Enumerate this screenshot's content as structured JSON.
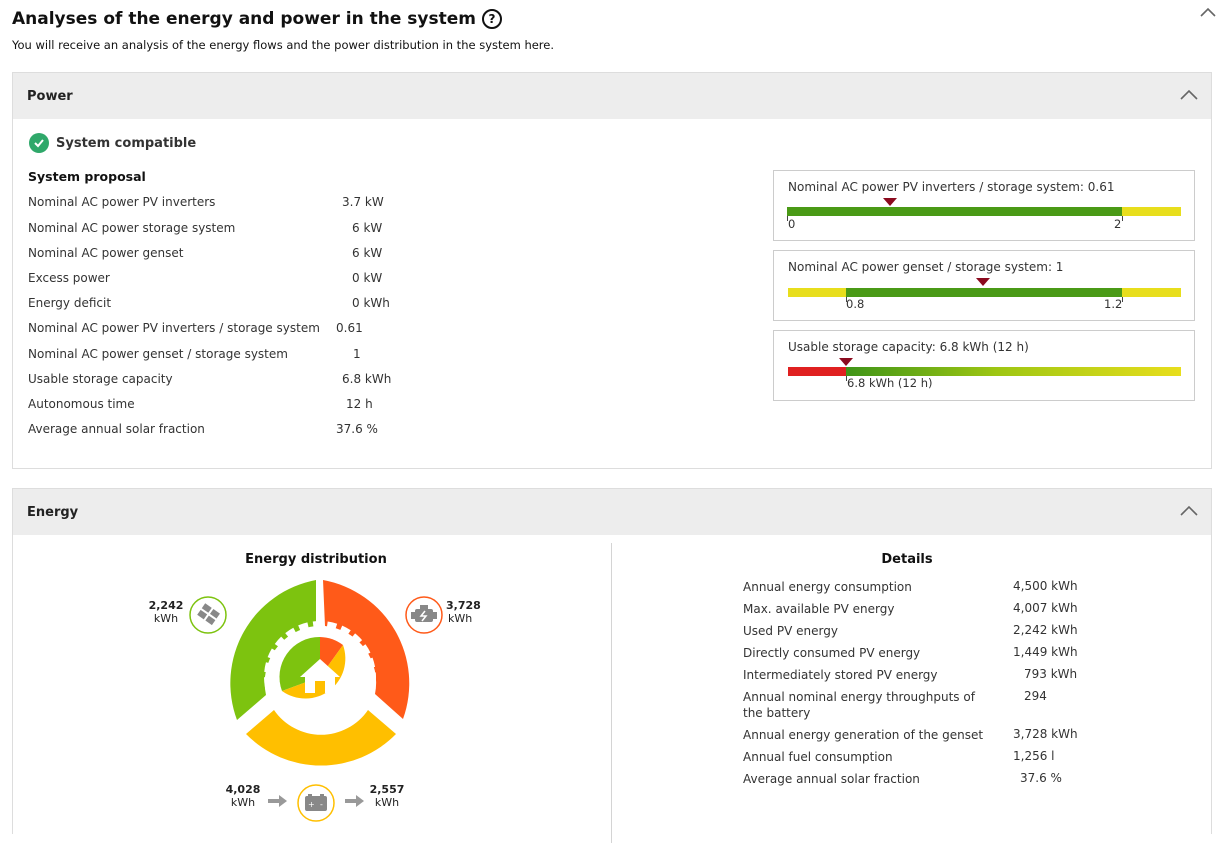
{
  "header": {
    "title": "Analyses of the energy and power in the system",
    "subtitle": "You will receive an analysis of the energy flows and the power distribution in the system here."
  },
  "power": {
    "title": "Power",
    "status": "System compatible",
    "proposal_title": "System proposal",
    "rows": [
      {
        "label": "Nominal AC power PV inverters",
        "value": "3.7 kW"
      },
      {
        "label": "Nominal AC power storage system",
        "value": "6 kW"
      },
      {
        "label": "Nominal AC power genset",
        "value": "6 kW"
      },
      {
        "label": "Excess power",
        "value": "0 kW"
      },
      {
        "label": "Energy deficit",
        "value": "0 kWh"
      },
      {
        "label": "Nominal AC power PV inverters / storage system",
        "value": "0.61"
      },
      {
        "label": "Nominal AC power genset / storage system",
        "value": "1"
      },
      {
        "label": "Usable storage capacity",
        "value": "6.8 kWh"
      },
      {
        "label": "Autonomous time",
        "value": "12 h"
      },
      {
        "label": "Average annual solar fraction",
        "value": "37.6 %"
      }
    ],
    "gauges": [
      {
        "label": "Nominal AC power PV inverters / storage system: 0.61",
        "tick_left": "0",
        "tick_right": "2",
        "marker_fraction": 0.305
      },
      {
        "label": "Nominal AC power genset / storage system: 1",
        "tick_left": "0.8",
        "tick_right": "1.2",
        "marker_fraction": 0.5
      },
      {
        "label": "Usable storage capacity: 6.8 kWh (12 h)",
        "tick_left": "6.8 kWh (12 h)",
        "marker_fraction": 0.0
      }
    ]
  },
  "energy": {
    "title": "Energy",
    "distribution_title": "Energy distribution",
    "pv": {
      "value": "2,242",
      "unit": "kWh"
    },
    "genset": {
      "value": "3,728",
      "unit": "kWh"
    },
    "battery_in": {
      "value": "4,028",
      "unit": "kWh"
    },
    "battery_out": {
      "value": "2,557",
      "unit": "kWh"
    },
    "details_title": "Details",
    "details": [
      {
        "label": "Annual energy consumption",
        "value": "4,500 kWh"
      },
      {
        "label": "Max. available PV energy",
        "value": "4,007 kWh"
      },
      {
        "label": "Used PV energy",
        "value": "2,242 kWh"
      },
      {
        "label": "Directly consumed PV energy",
        "value": "1,449 kWh"
      },
      {
        "label": "Intermediately stored PV energy",
        "value": "793 kWh"
      },
      {
        "label": "Annual nominal energy throughputs of the battery",
        "value": "294"
      },
      {
        "label": "Annual energy generation of the genset",
        "value": "3,728 kWh"
      },
      {
        "label": "Annual fuel consumption",
        "value": "1,256 l"
      },
      {
        "label": "Average annual solar fraction",
        "value": "37.6 %"
      }
    ]
  },
  "colors": {
    "pv": "#7dc30f",
    "genset": "#ff5a19",
    "battery": "#ffbf00",
    "marker": "#8b0a1e",
    "ok": "#2fa86a"
  },
  "icons": [
    "help-icon",
    "chevron-up-icon",
    "check-circle-icon",
    "solar-panel-icon",
    "genset-icon",
    "battery-icon",
    "arrow-right-icon",
    "house-icon"
  ]
}
